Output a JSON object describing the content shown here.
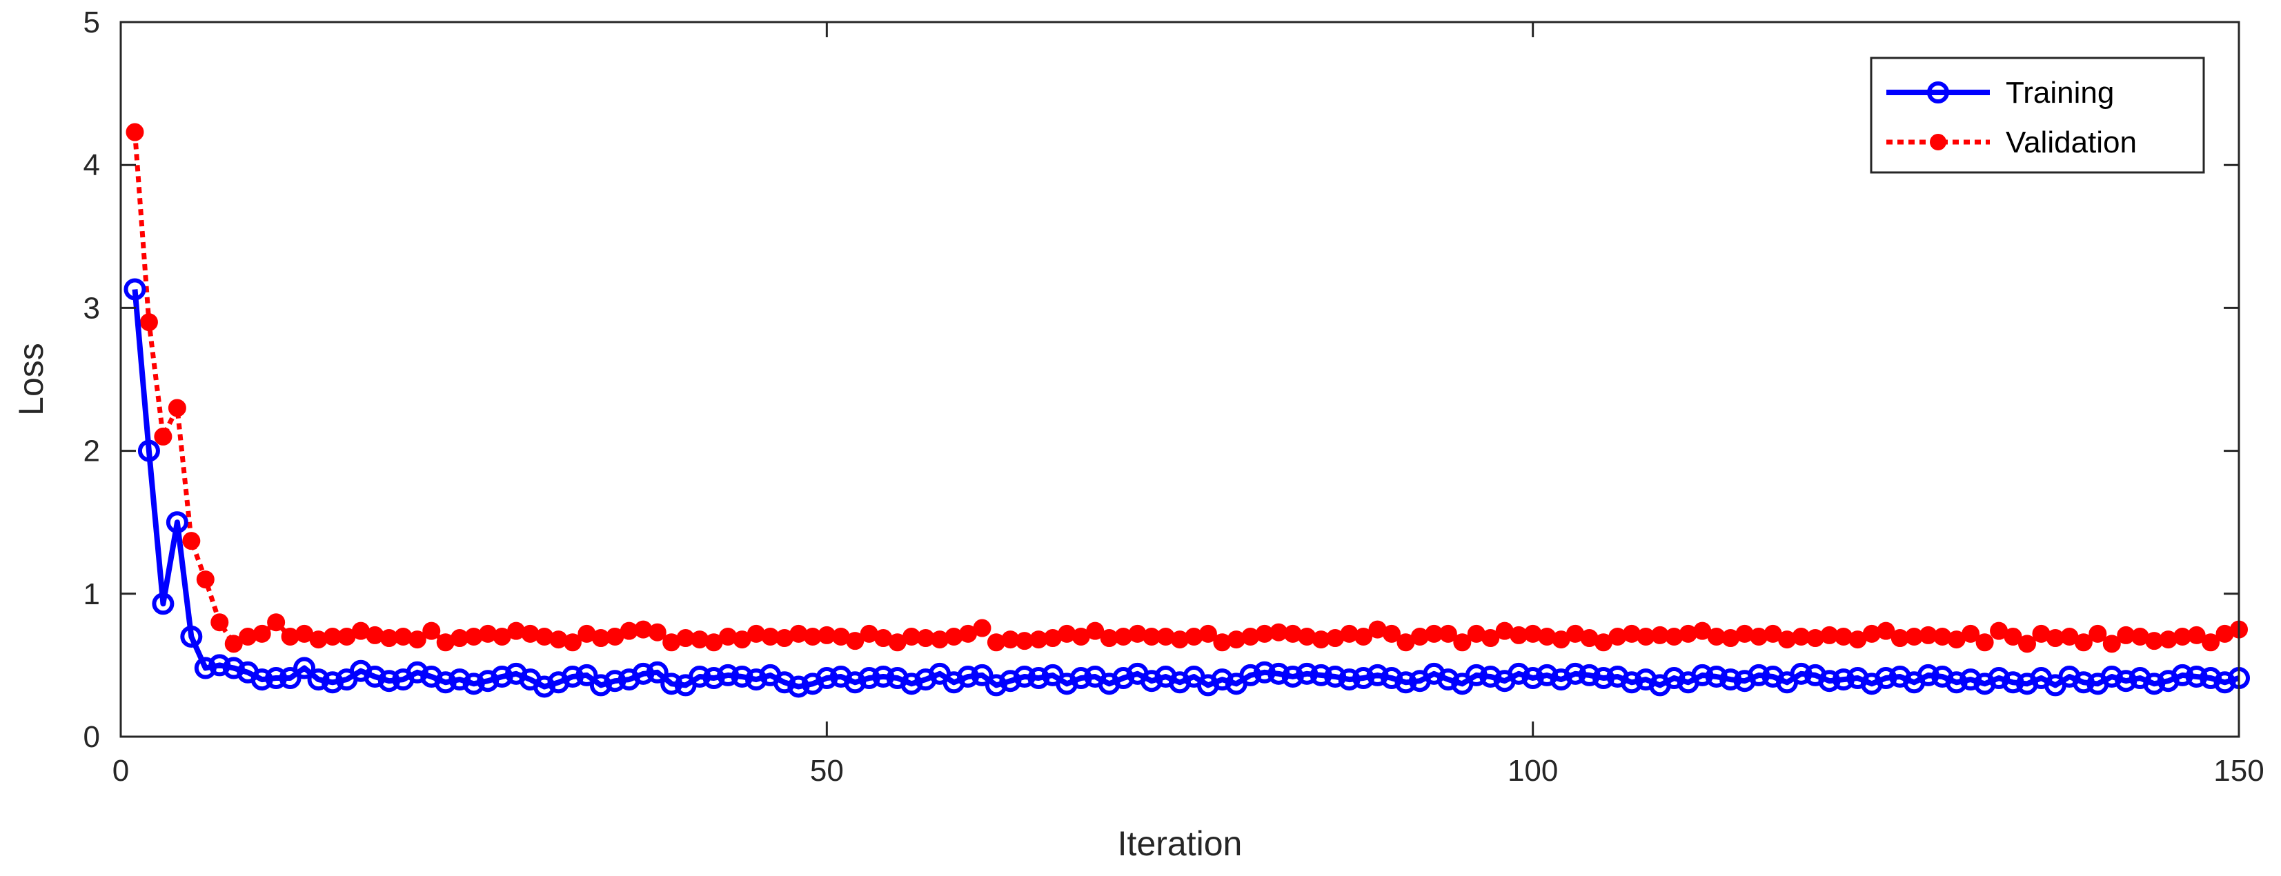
{
  "chart_data": {
    "type": "line",
    "xlabel": "Iteration",
    "ylabel": "Loss",
    "xlim": [
      0,
      150
    ],
    "ylim": [
      0,
      5
    ],
    "xticks": [
      0,
      50,
      100,
      150
    ],
    "yticks": [
      0,
      1,
      2,
      3,
      4,
      5
    ],
    "grid": false,
    "legend_position": "top-right",
    "series": [
      {
        "name": "Training",
        "color": "#0000ff",
        "line_style": "solid",
        "marker": "open-circle",
        "x": [
          1,
          2,
          3,
          4,
          5,
          6,
          7,
          8,
          9,
          10,
          11,
          12,
          13,
          14,
          15,
          16,
          17,
          18,
          19,
          20,
          21,
          22,
          23,
          24,
          25,
          26,
          27,
          28,
          29,
          30,
          31,
          32,
          33,
          34,
          35,
          36,
          37,
          38,
          39,
          40,
          41,
          42,
          43,
          44,
          45,
          46,
          47,
          48,
          49,
          50,
          51,
          52,
          53,
          54,
          55,
          56,
          57,
          58,
          59,
          60,
          61,
          62,
          63,
          64,
          65,
          66,
          67,
          68,
          69,
          70,
          71,
          72,
          73,
          74,
          75,
          76,
          77,
          78,
          79,
          80,
          81,
          82,
          83,
          84,
          85,
          86,
          87,
          88,
          89,
          90,
          91,
          92,
          93,
          94,
          95,
          96,
          97,
          98,
          99,
          100,
          101,
          102,
          103,
          104,
          105,
          106,
          107,
          108,
          109,
          110,
          111,
          112,
          113,
          114,
          115,
          116,
          117,
          118,
          119,
          120,
          121,
          122,
          123,
          124,
          125,
          126,
          127,
          128,
          129,
          130,
          131,
          132,
          133,
          134,
          135,
          136,
          137,
          138,
          139,
          140,
          141,
          142,
          143,
          144,
          145,
          146,
          147,
          148,
          149,
          150
        ],
        "y": [
          3.13,
          2.0,
          0.93,
          1.5,
          0.7,
          0.48,
          0.5,
          0.48,
          0.45,
          0.4,
          0.41,
          0.41,
          0.48,
          0.4,
          0.38,
          0.4,
          0.46,
          0.42,
          0.39,
          0.4,
          0.45,
          0.42,
          0.38,
          0.4,
          0.37,
          0.39,
          0.42,
          0.44,
          0.4,
          0.35,
          0.38,
          0.42,
          0.43,
          0.36,
          0.39,
          0.4,
          0.44,
          0.45,
          0.37,
          0.36,
          0.42,
          0.41,
          0.43,
          0.42,
          0.4,
          0.43,
          0.38,
          0.35,
          0.37,
          0.41,
          0.42,
          0.38,
          0.41,
          0.42,
          0.41,
          0.37,
          0.4,
          0.44,
          0.38,
          0.42,
          0.43,
          0.36,
          0.39,
          0.42,
          0.41,
          0.43,
          0.37,
          0.41,
          0.42,
          0.37,
          0.41,
          0.44,
          0.39,
          0.42,
          0.38,
          0.42,
          0.36,
          0.4,
          0.37,
          0.43,
          0.45,
          0.44,
          0.42,
          0.44,
          0.43,
          0.42,
          0.4,
          0.41,
          0.43,
          0.41,
          0.38,
          0.39,
          0.44,
          0.4,
          0.37,
          0.43,
          0.42,
          0.39,
          0.44,
          0.41,
          0.43,
          0.4,
          0.44,
          0.43,
          0.41,
          0.42,
          0.38,
          0.4,
          0.36,
          0.41,
          0.38,
          0.43,
          0.42,
          0.4,
          0.39,
          0.43,
          0.42,
          0.38,
          0.44,
          0.43,
          0.39,
          0.4,
          0.41,
          0.37,
          0.41,
          0.42,
          0.38,
          0.43,
          0.42,
          0.38,
          0.4,
          0.37,
          0.41,
          0.38,
          0.37,
          0.41,
          0.36,
          0.42,
          0.38,
          0.37,
          0.42,
          0.39,
          0.41,
          0.37,
          0.39,
          0.43,
          0.42,
          0.41,
          0.38,
          0.41
        ]
      },
      {
        "name": "Validation",
        "color": "#ff0000",
        "line_style": "dotted",
        "marker": "filled-circle",
        "x": [
          1,
          2,
          3,
          4,
          5,
          6,
          7,
          8,
          9,
          10,
          11,
          12,
          13,
          14,
          15,
          16,
          17,
          18,
          19,
          20,
          21,
          22,
          23,
          24,
          25,
          26,
          27,
          28,
          29,
          30,
          31,
          32,
          33,
          34,
          35,
          36,
          37,
          38,
          39,
          40,
          41,
          42,
          43,
          44,
          45,
          46,
          47,
          48,
          49,
          50,
          51,
          52,
          53,
          54,
          55,
          56,
          57,
          58,
          59,
          60,
          61,
          62,
          63,
          64,
          65,
          66,
          67,
          68,
          69,
          70,
          71,
          72,
          73,
          74,
          75,
          76,
          77,
          78,
          79,
          80,
          81,
          82,
          83,
          84,
          85,
          86,
          87,
          88,
          89,
          90,
          91,
          92,
          93,
          94,
          95,
          96,
          97,
          98,
          99,
          100,
          101,
          102,
          103,
          104,
          105,
          106,
          107,
          108,
          109,
          110,
          111,
          112,
          113,
          114,
          115,
          116,
          117,
          118,
          119,
          120,
          121,
          122,
          123,
          124,
          125,
          126,
          127,
          128,
          129,
          130,
          131,
          132,
          133,
          134,
          135,
          136,
          137,
          138,
          139,
          140,
          141,
          142,
          143,
          144,
          145,
          146,
          147,
          148,
          149,
          150
        ],
        "y": [
          4.23,
          2.9,
          2.1,
          2.3,
          1.37,
          1.1,
          0.8,
          0.65,
          0.7,
          0.72,
          0.8,
          0.7,
          0.72,
          0.68,
          0.7,
          0.7,
          0.74,
          0.71,
          0.69,
          0.7,
          0.68,
          0.74,
          0.66,
          0.69,
          0.7,
          0.72,
          0.7,
          0.74,
          0.72,
          0.7,
          0.68,
          0.66,
          0.72,
          0.69,
          0.7,
          0.74,
          0.75,
          0.73,
          0.66,
          0.69,
          0.68,
          0.66,
          0.7,
          0.68,
          0.72,
          0.7,
          0.69,
          0.72,
          0.7,
          0.71,
          0.7,
          0.67,
          0.72,
          0.69,
          0.66,
          0.7,
          0.69,
          0.68,
          0.7,
          0.72,
          0.76,
          0.66,
          0.68,
          0.67,
          0.68,
          0.69,
          0.72,
          0.7,
          0.74,
          0.69,
          0.7,
          0.72,
          0.7,
          0.7,
          0.68,
          0.7,
          0.72,
          0.66,
          0.68,
          0.7,
          0.72,
          0.73,
          0.72,
          0.7,
          0.68,
          0.69,
          0.72,
          0.7,
          0.75,
          0.72,
          0.66,
          0.7,
          0.72,
          0.72,
          0.66,
          0.72,
          0.69,
          0.74,
          0.71,
          0.72,
          0.7,
          0.68,
          0.72,
          0.69,
          0.66,
          0.7,
          0.72,
          0.7,
          0.71,
          0.7,
          0.72,
          0.74,
          0.7,
          0.69,
          0.72,
          0.7,
          0.72,
          0.68,
          0.7,
          0.69,
          0.71,
          0.7,
          0.68,
          0.72,
          0.74,
          0.69,
          0.7,
          0.71,
          0.7,
          0.68,
          0.72,
          0.66,
          0.74,
          0.7,
          0.65,
          0.72,
          0.69,
          0.7,
          0.66,
          0.72,
          0.65,
          0.71,
          0.7,
          0.67,
          0.68,
          0.7,
          0.71,
          0.66,
          0.72,
          0.75
        ]
      }
    ]
  }
}
